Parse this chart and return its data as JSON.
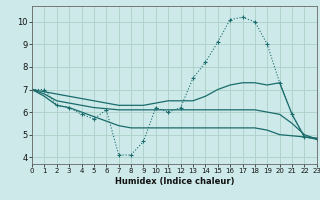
{
  "xlabel": "Humidex (Indice chaleur)",
  "bg_color": "#cde9e9",
  "grid_color": "#b0d4cc",
  "line_color": "#1a6b6b",
  "x_ticks": [
    0,
    1,
    2,
    3,
    4,
    5,
    6,
    7,
    8,
    9,
    10,
    11,
    12,
    13,
    14,
    15,
    16,
    17,
    18,
    19,
    20,
    21,
    22,
    23
  ],
  "y_ticks": [
    4,
    5,
    6,
    7,
    8,
    9,
    10
  ],
  "xlim": [
    0,
    23
  ],
  "ylim": [
    3.7,
    10.7
  ],
  "lines": [
    {
      "x": [
        0,
        1,
        2,
        3,
        4,
        5,
        6,
        7,
        8,
        9,
        10,
        11,
        12,
        13,
        14,
        15,
        16,
        17,
        18,
        19,
        20,
        21,
        22,
        23
      ],
      "y": [
        7.0,
        7.0,
        6.3,
        6.2,
        5.9,
        5.7,
        6.1,
        4.1,
        4.1,
        4.7,
        6.2,
        6.0,
        6.2,
        7.5,
        8.2,
        9.1,
        10.1,
        10.2,
        10.0,
        9.0,
        7.3,
        5.9,
        4.9,
        4.8
      ],
      "linestyle": ":",
      "marker": "+"
    },
    {
      "x": [
        0,
        1,
        2,
        3,
        4,
        5,
        6,
        7,
        8,
        9,
        10,
        11,
        12,
        13,
        14,
        15,
        16,
        17,
        18,
        19,
        20,
        21,
        22,
        23
      ],
      "y": [
        7.0,
        6.9,
        6.8,
        6.7,
        6.6,
        6.5,
        6.4,
        6.3,
        6.3,
        6.3,
        6.4,
        6.5,
        6.5,
        6.5,
        6.7,
        7.0,
        7.2,
        7.3,
        7.3,
        7.2,
        7.3,
        5.9,
        4.9,
        4.8
      ],
      "linestyle": "-",
      "marker": null
    },
    {
      "x": [
        0,
        1,
        2,
        3,
        4,
        5,
        6,
        7,
        8,
        9,
        10,
        11,
        12,
        13,
        14,
        15,
        16,
        17,
        18,
        19,
        20,
        21,
        22,
        23
      ],
      "y": [
        7.0,
        6.8,
        6.5,
        6.4,
        6.3,
        6.2,
        6.15,
        6.1,
        6.1,
        6.1,
        6.1,
        6.1,
        6.1,
        6.1,
        6.1,
        6.1,
        6.1,
        6.1,
        6.1,
        6.0,
        5.9,
        5.5,
        5.0,
        4.8
      ],
      "linestyle": "-",
      "marker": null
    },
    {
      "x": [
        0,
        1,
        2,
        3,
        4,
        5,
        6,
        7,
        8,
        9,
        10,
        11,
        12,
        13,
        14,
        15,
        16,
        17,
        18,
        19,
        20,
        21,
        22,
        23
      ],
      "y": [
        7.0,
        6.7,
        6.3,
        6.2,
        6.0,
        5.8,
        5.6,
        5.4,
        5.3,
        5.3,
        5.3,
        5.3,
        5.3,
        5.3,
        5.3,
        5.3,
        5.3,
        5.3,
        5.3,
        5.2,
        5.0,
        4.95,
        4.9,
        4.85
      ],
      "linestyle": "-",
      "marker": null
    }
  ]
}
